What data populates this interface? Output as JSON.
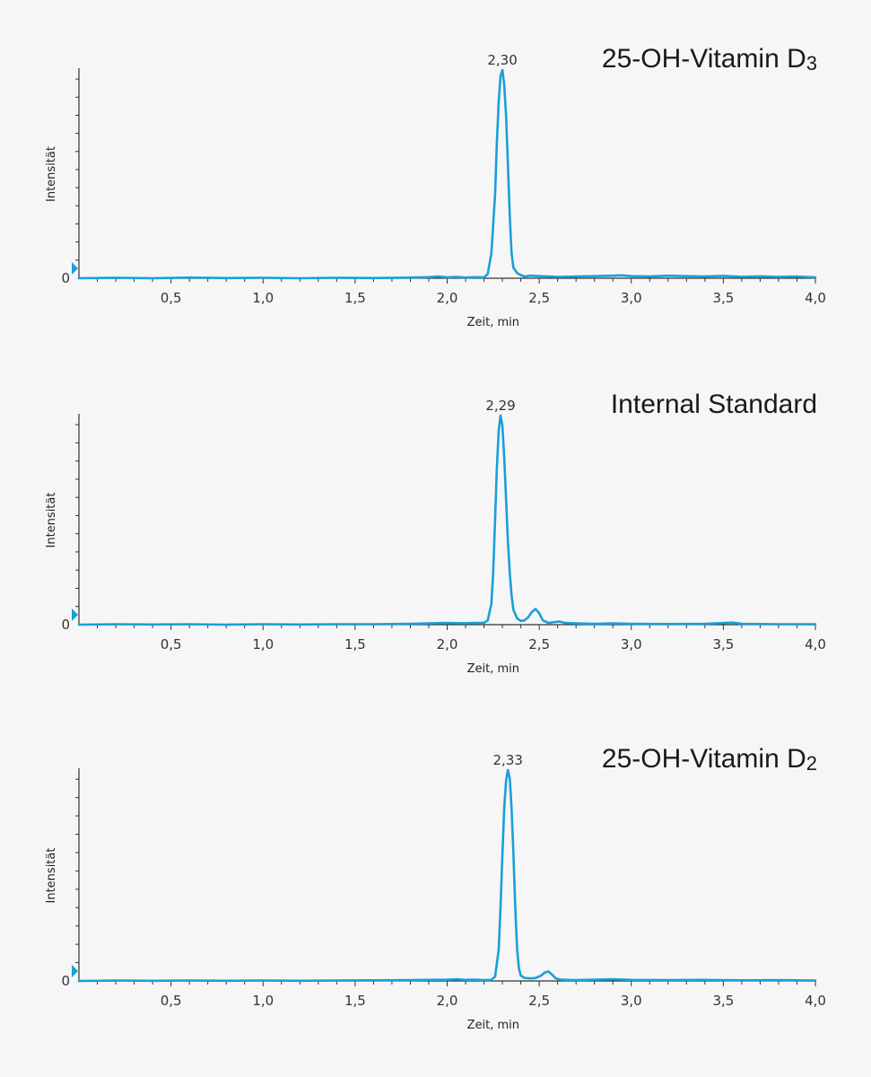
{
  "chart_data": [
    {
      "type": "line",
      "title": "25-OH-Vitamin D",
      "title_subscript": "3",
      "xlabel": "Zeit, min",
      "ylabel": "Intensität",
      "xlim": [
        0,
        4.0
      ],
      "ylim": [
        0,
        1.0
      ],
      "x_ticks": [
        "0,5",
        "1,0",
        "1,5",
        "2,0",
        "2,5",
        "3,0",
        "3,5",
        "4,0"
      ],
      "y_ticks": [
        "0"
      ],
      "peak_label": "2,30",
      "grid": false,
      "color": "#1a9fd9",
      "series": [
        {
          "x": [
            0,
            0.2,
            0.4,
            0.6,
            0.8,
            1.0,
            1.2,
            1.4,
            1.6,
            1.8,
            1.9,
            1.95,
            2.0,
            2.05,
            2.1,
            2.15,
            2.2,
            2.22,
            2.24,
            2.26,
            2.27,
            2.28,
            2.29,
            2.3,
            2.31,
            2.32,
            2.33,
            2.34,
            2.35,
            2.36,
            2.38,
            2.4,
            2.42,
            2.45,
            2.5,
            2.55,
            2.6,
            2.7,
            2.8,
            2.9,
            2.95,
            3.0,
            3.1,
            3.2,
            3.3,
            3.4,
            3.5,
            3.6,
            3.7,
            3.8,
            3.9,
            4.0
          ],
          "y": [
            0,
            0.002,
            0,
            0.003,
            0.001,
            0.002,
            0,
            0.002,
            0.001,
            0.003,
            0.005,
            0.008,
            0.004,
            0.006,
            0.003,
            0.005,
            0.004,
            0.02,
            0.12,
            0.4,
            0.65,
            0.85,
            0.97,
            1.0,
            0.93,
            0.78,
            0.55,
            0.3,
            0.12,
            0.05,
            0.025,
            0.015,
            0.008,
            0.012,
            0.01,
            0.008,
            0.006,
            0.008,
            0.01,
            0.012,
            0.014,
            0.01,
            0.008,
            0.012,
            0.01,
            0.008,
            0.011,
            0.007,
            0.009,
            0.006,
            0.008,
            0.004
          ]
        }
      ]
    },
    {
      "type": "line",
      "title": "Internal Standard",
      "title_subscript": "",
      "xlabel": "Zeit, min",
      "ylabel": "Intensität",
      "xlim": [
        0,
        4.0
      ],
      "ylim": [
        0,
        1.0
      ],
      "x_ticks": [
        "0,5",
        "1,0",
        "1,5",
        "2,0",
        "2,5",
        "3,0",
        "3,5",
        "4,0"
      ],
      "y_ticks": [
        "0"
      ],
      "peak_label": "2,29",
      "grid": false,
      "color": "#1a9fd9",
      "series": [
        {
          "x": [
            0,
            0.2,
            0.4,
            0.6,
            0.8,
            1.0,
            1.2,
            1.4,
            1.6,
            1.8,
            1.9,
            2.0,
            2.1,
            2.15,
            2.2,
            2.22,
            2.24,
            2.25,
            2.26,
            2.27,
            2.28,
            2.29,
            2.3,
            2.31,
            2.32,
            2.33,
            2.34,
            2.35,
            2.36,
            2.38,
            2.4,
            2.42,
            2.44,
            2.46,
            2.48,
            2.5,
            2.52,
            2.55,
            2.58,
            2.61,
            2.64,
            2.7,
            2.8,
            2.9,
            3.0,
            3.2,
            3.4,
            3.55,
            3.6,
            3.7,
            3.8,
            4.0
          ],
          "y": [
            0,
            0.002,
            0.001,
            0.002,
            0,
            0.002,
            0.001,
            0.002,
            0.002,
            0.004,
            0.006,
            0.008,
            0.007,
            0.008,
            0.009,
            0.02,
            0.1,
            0.25,
            0.5,
            0.75,
            0.93,
            1.0,
            0.95,
            0.8,
            0.6,
            0.4,
            0.25,
            0.14,
            0.07,
            0.03,
            0.018,
            0.02,
            0.035,
            0.06,
            0.075,
            0.055,
            0.02,
            0.008,
            0.012,
            0.015,
            0.008,
            0.006,
            0.004,
            0.006,
            0.004,
            0.003,
            0.004,
            0.01,
            0.004,
            0.003,
            0.002,
            0.002
          ]
        }
      ]
    },
    {
      "type": "line",
      "title": "25-OH-Vitamin D",
      "title_subscript": "2",
      "xlabel": "Zeit, min",
      "ylabel": "Intensität",
      "xlim": [
        0,
        4.0
      ],
      "ylim": [
        0,
        1.0
      ],
      "x_ticks": [
        "0,5",
        "1,0",
        "1,5",
        "2,0",
        "2,5",
        "3,0",
        "3,5",
        "4,0"
      ],
      "y_ticks": [
        "0"
      ],
      "peak_label": "2,33",
      "grid": false,
      "color": "#1a9fd9",
      "series": [
        {
          "x": [
            0,
            0.2,
            0.4,
            0.6,
            0.8,
            1.0,
            1.2,
            1.4,
            1.6,
            1.8,
            1.9,
            2.0,
            2.05,
            2.1,
            2.15,
            2.2,
            2.24,
            2.26,
            2.28,
            2.29,
            2.3,
            2.31,
            2.32,
            2.33,
            2.34,
            2.35,
            2.36,
            2.37,
            2.38,
            2.39,
            2.4,
            2.42,
            2.45,
            2.48,
            2.51,
            2.53,
            2.55,
            2.57,
            2.59,
            2.62,
            2.7,
            2.8,
            2.9,
            3.0,
            3.2,
            3.4,
            3.6,
            3.8,
            4.0
          ],
          "y": [
            0,
            0.002,
            0.001,
            0.002,
            0.001,
            0.002,
            0.001,
            0.002,
            0.003,
            0.004,
            0.005,
            0.006,
            0.008,
            0.005,
            0.006,
            0.004,
            0.005,
            0.02,
            0.15,
            0.35,
            0.6,
            0.82,
            0.95,
            1.0,
            0.96,
            0.82,
            0.6,
            0.35,
            0.15,
            0.06,
            0.025,
            0.015,
            0.012,
            0.014,
            0.025,
            0.04,
            0.045,
            0.03,
            0.012,
            0.006,
            0.004,
            0.006,
            0.008,
            0.005,
            0.004,
            0.005,
            0.003,
            0.004,
            0.002
          ]
        }
      ]
    }
  ]
}
